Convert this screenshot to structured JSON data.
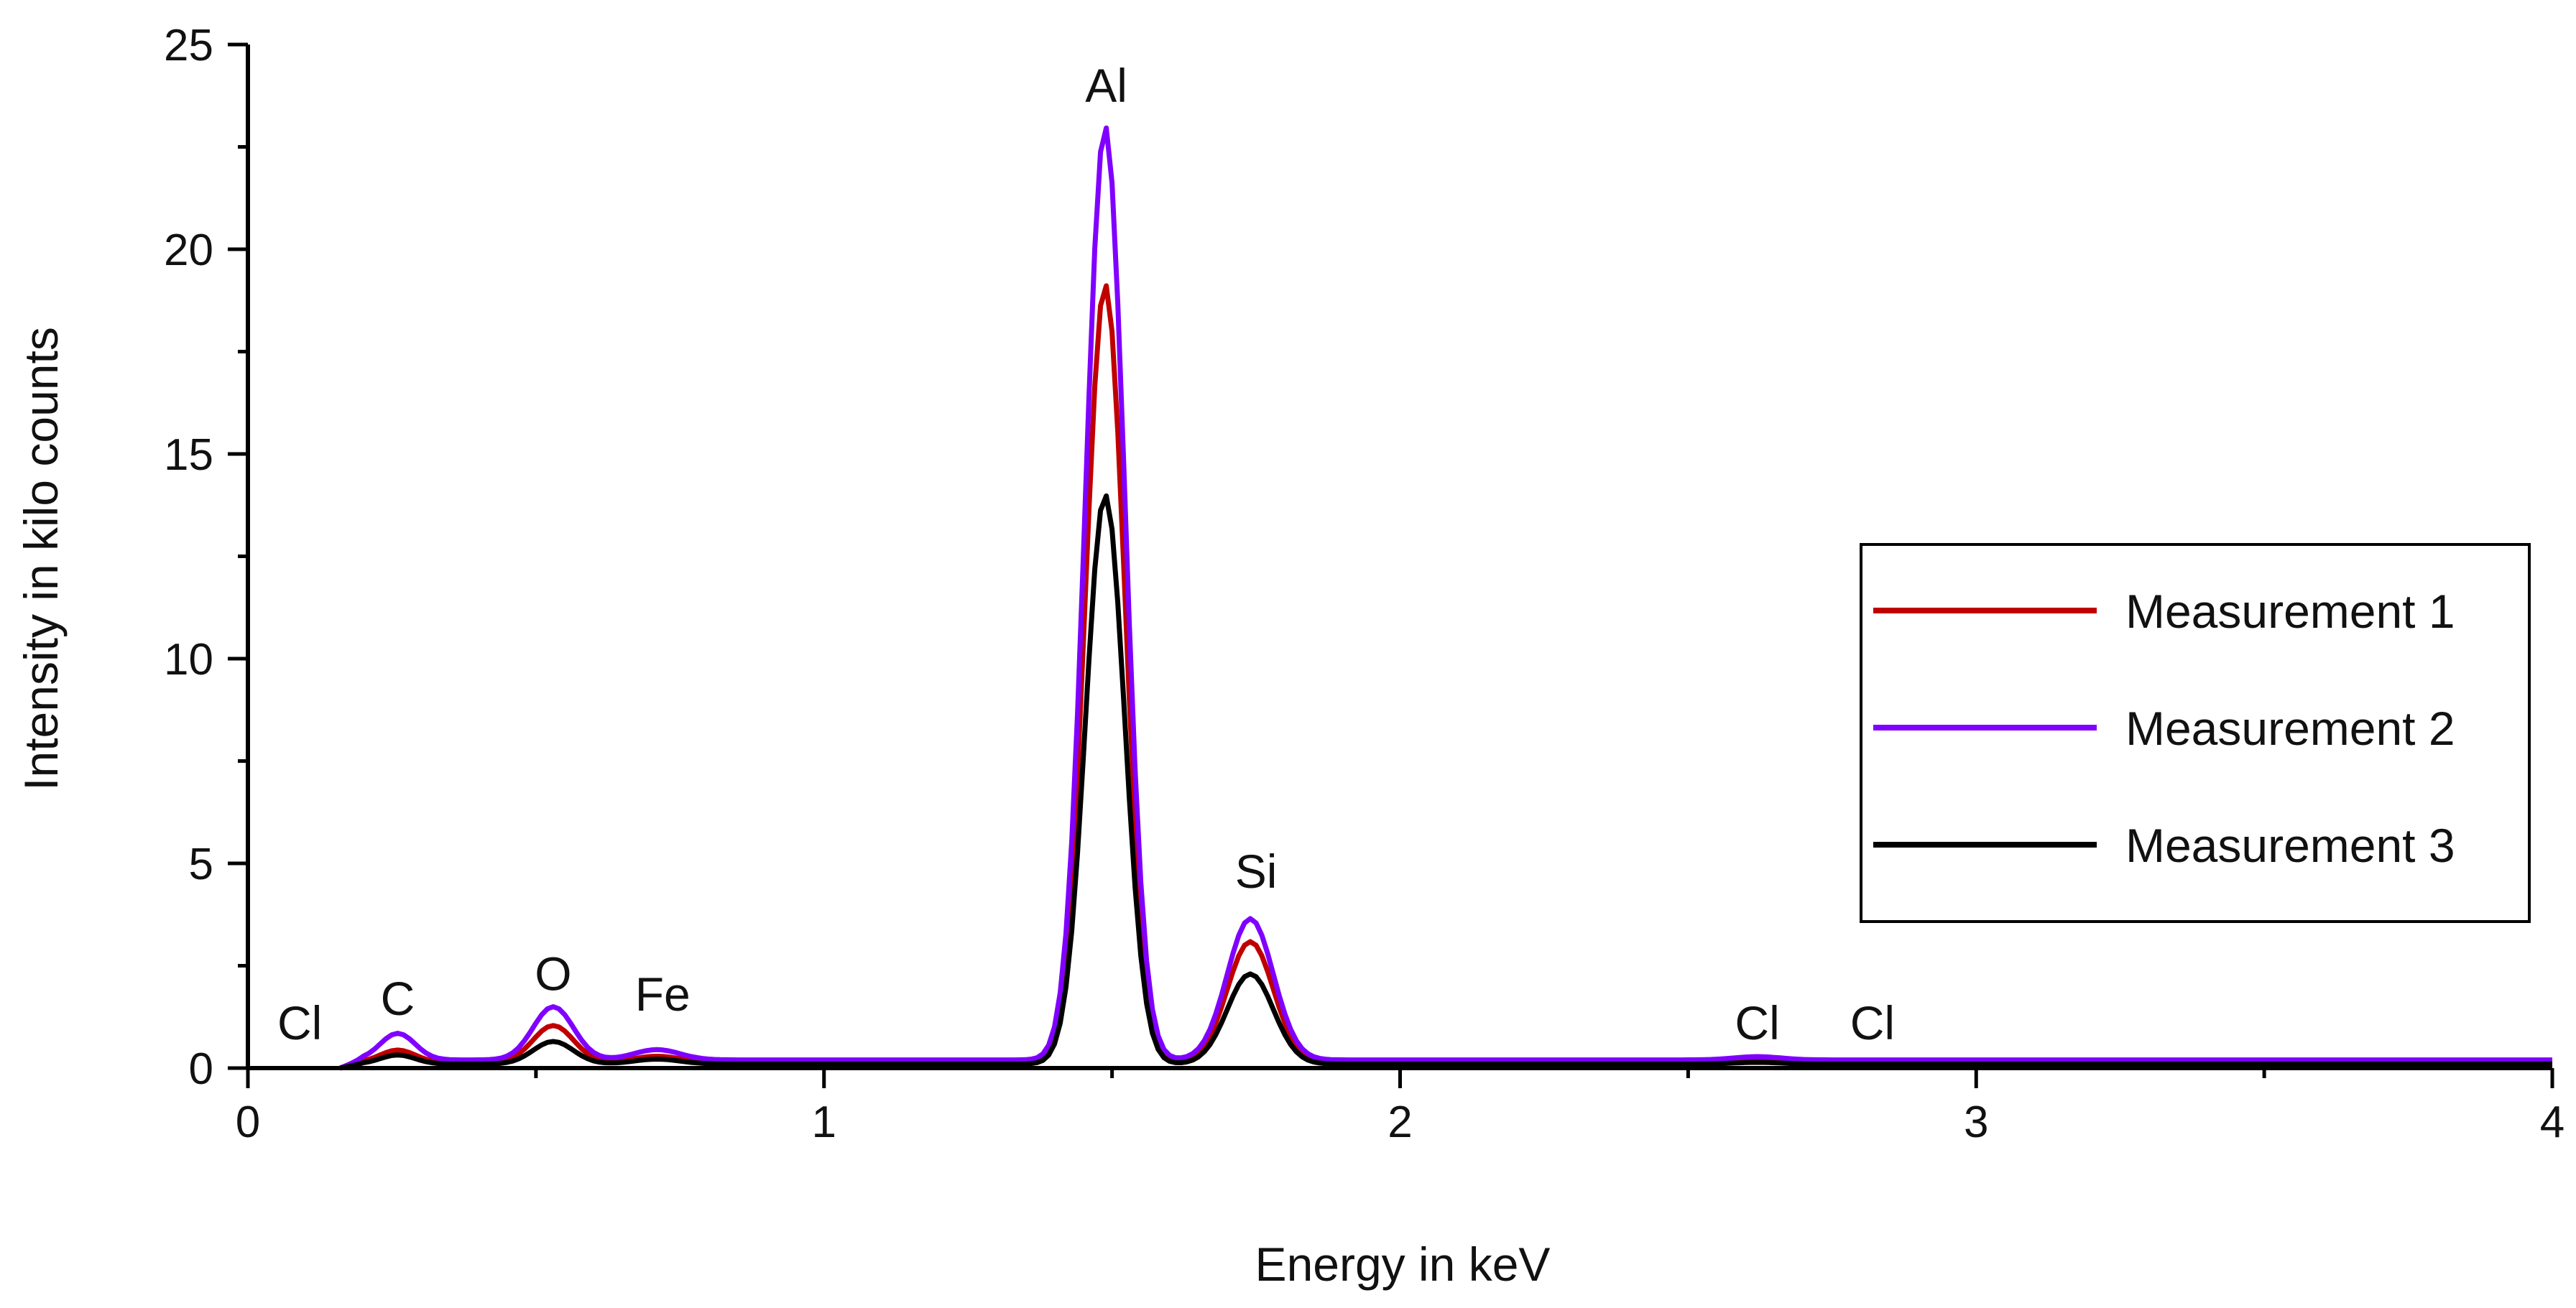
{
  "chart_data": {
    "type": "line",
    "title": "",
    "xlabel": "Energy in keV",
    "ylabel": "Intensity in kilo counts",
    "xlim": [
      0,
      4
    ],
    "ylim": [
      0,
      25
    ],
    "x_ticks": [
      0,
      1,
      2,
      3,
      4
    ],
    "x_tick_labels": [
      "0",
      "1",
      "2",
      "3",
      "4"
    ],
    "x_minor_step": 0.5,
    "y_ticks": [
      0,
      5,
      10,
      15,
      20,
      25
    ],
    "y_tick_labels": [
      "0",
      "5",
      "10",
      "15",
      "20",
      "25"
    ],
    "y_minor_step": 2.5,
    "grid": false,
    "legend_position": "right",
    "series": [
      {
        "name": "Measurement 1",
        "color": "#c00000",
        "peaks": [
          {
            "center": 0.26,
            "height": 0.3,
            "width": 0.03
          },
          {
            "center": 0.53,
            "height": 0.9,
            "width": 0.035
          },
          {
            "center": 0.71,
            "height": 0.15,
            "width": 0.04
          },
          {
            "center": 1.488,
            "height": 19.0,
            "width": 0.034
          },
          {
            "center": 1.74,
            "height": 2.95,
            "width": 0.04
          },
          {
            "center": 2.62,
            "height": 0.05,
            "width": 0.04
          }
        ],
        "baseline": 0.14
      },
      {
        "name": "Measurement 2",
        "color": "#8000ff",
        "peaks": [
          {
            "center": 0.26,
            "height": 0.65,
            "width": 0.03
          },
          {
            "center": 0.53,
            "height": 1.3,
            "width": 0.035
          },
          {
            "center": 0.71,
            "height": 0.25,
            "width": 0.04
          },
          {
            "center": 1.488,
            "height": 22.8,
            "width": 0.034
          },
          {
            "center": 1.74,
            "height": 3.45,
            "width": 0.04
          },
          {
            "center": 2.62,
            "height": 0.08,
            "width": 0.04
          }
        ],
        "baseline": 0.2
      },
      {
        "name": "Measurement 3",
        "color": "#000000",
        "peaks": [
          {
            "center": 0.26,
            "height": 0.22,
            "width": 0.03
          },
          {
            "center": 0.53,
            "height": 0.55,
            "width": 0.035
          },
          {
            "center": 0.71,
            "height": 0.12,
            "width": 0.04
          },
          {
            "center": 1.488,
            "height": 13.9,
            "width": 0.034
          },
          {
            "center": 1.74,
            "height": 2.2,
            "width": 0.04
          },
          {
            "center": 2.62,
            "height": 0.04,
            "width": 0.04
          }
        ],
        "baseline": 0.1
      }
    ],
    "annotations": [
      {
        "label": "Cl",
        "x": 0.09,
        "y": 0.7
      },
      {
        "label": "C",
        "x": 0.26,
        "y": 1.3
      },
      {
        "label": "O",
        "x": 0.53,
        "y": 1.9
      },
      {
        "label": "Fe",
        "x": 0.72,
        "y": 1.4
      },
      {
        "label": "Al",
        "x": 1.49,
        "y": 23.6
      },
      {
        "label": "Si",
        "x": 1.75,
        "y": 4.4
      },
      {
        "label": "Cl",
        "x": 2.62,
        "y": 0.7
      },
      {
        "label": "Cl",
        "x": 2.82,
        "y": 0.7
      }
    ]
  }
}
